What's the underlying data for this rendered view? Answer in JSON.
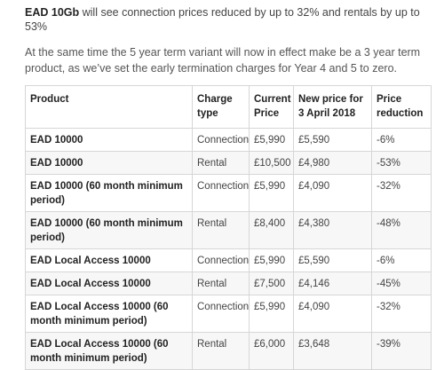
{
  "intro": {
    "bold_lead": "EAD 10Gb",
    "rest": " will see connection prices reduced by up to 32% and rentals by up to 53%"
  },
  "note": "At the same time the 5 year term variant will now in effect make be a 3 year term product, as we’ve set the early termination charges for Year 4 and 5 to zero.",
  "table": {
    "headers": {
      "product": "Product",
      "charge_type": "Charge type",
      "current_price": "Current Price",
      "new_price": "New price for 3 April 2018",
      "price_reduction": "Price reduction"
    },
    "rows": [
      {
        "product": "EAD 10000",
        "charge_type": "Connection",
        "current_price": "£5,990",
        "new_price": "£5,590",
        "price_reduction": "-6%"
      },
      {
        "product": "EAD 10000",
        "charge_type": "Rental",
        "current_price": "£10,500",
        "new_price": "£4,980",
        "price_reduction": "-53%"
      },
      {
        "product": "EAD 10000 (60 month minimum period)",
        "charge_type": "Connection",
        "current_price": "£5,990",
        "new_price": "£4,090",
        "price_reduction": "-32%"
      },
      {
        "product": "EAD 10000 (60 month minimum period)",
        "charge_type": "Rental",
        "current_price": "£8,400",
        "new_price": "£4,380",
        "price_reduction": "-48%"
      },
      {
        "product": "EAD Local Access 10000",
        "charge_type": "Connection",
        "current_price": "£5,990",
        "new_price": "£5,590",
        "price_reduction": "-6%"
      },
      {
        "product": "EAD Local Access 10000",
        "charge_type": "Rental",
        "current_price": "£7,500",
        "new_price": "£4,146",
        "price_reduction": "-45%"
      },
      {
        "product": "EAD Local Access 10000 (60 month minimum period)",
        "charge_type": "Connection",
        "current_price": "£5,990",
        "new_price": "£4,090",
        "price_reduction": "-32%"
      },
      {
        "product": "EAD Local Access 10000 (60 month minimum period)",
        "charge_type": "Rental",
        "current_price": "£6,000",
        "new_price": "£3,648",
        "price_reduction": "-39%"
      }
    ]
  }
}
